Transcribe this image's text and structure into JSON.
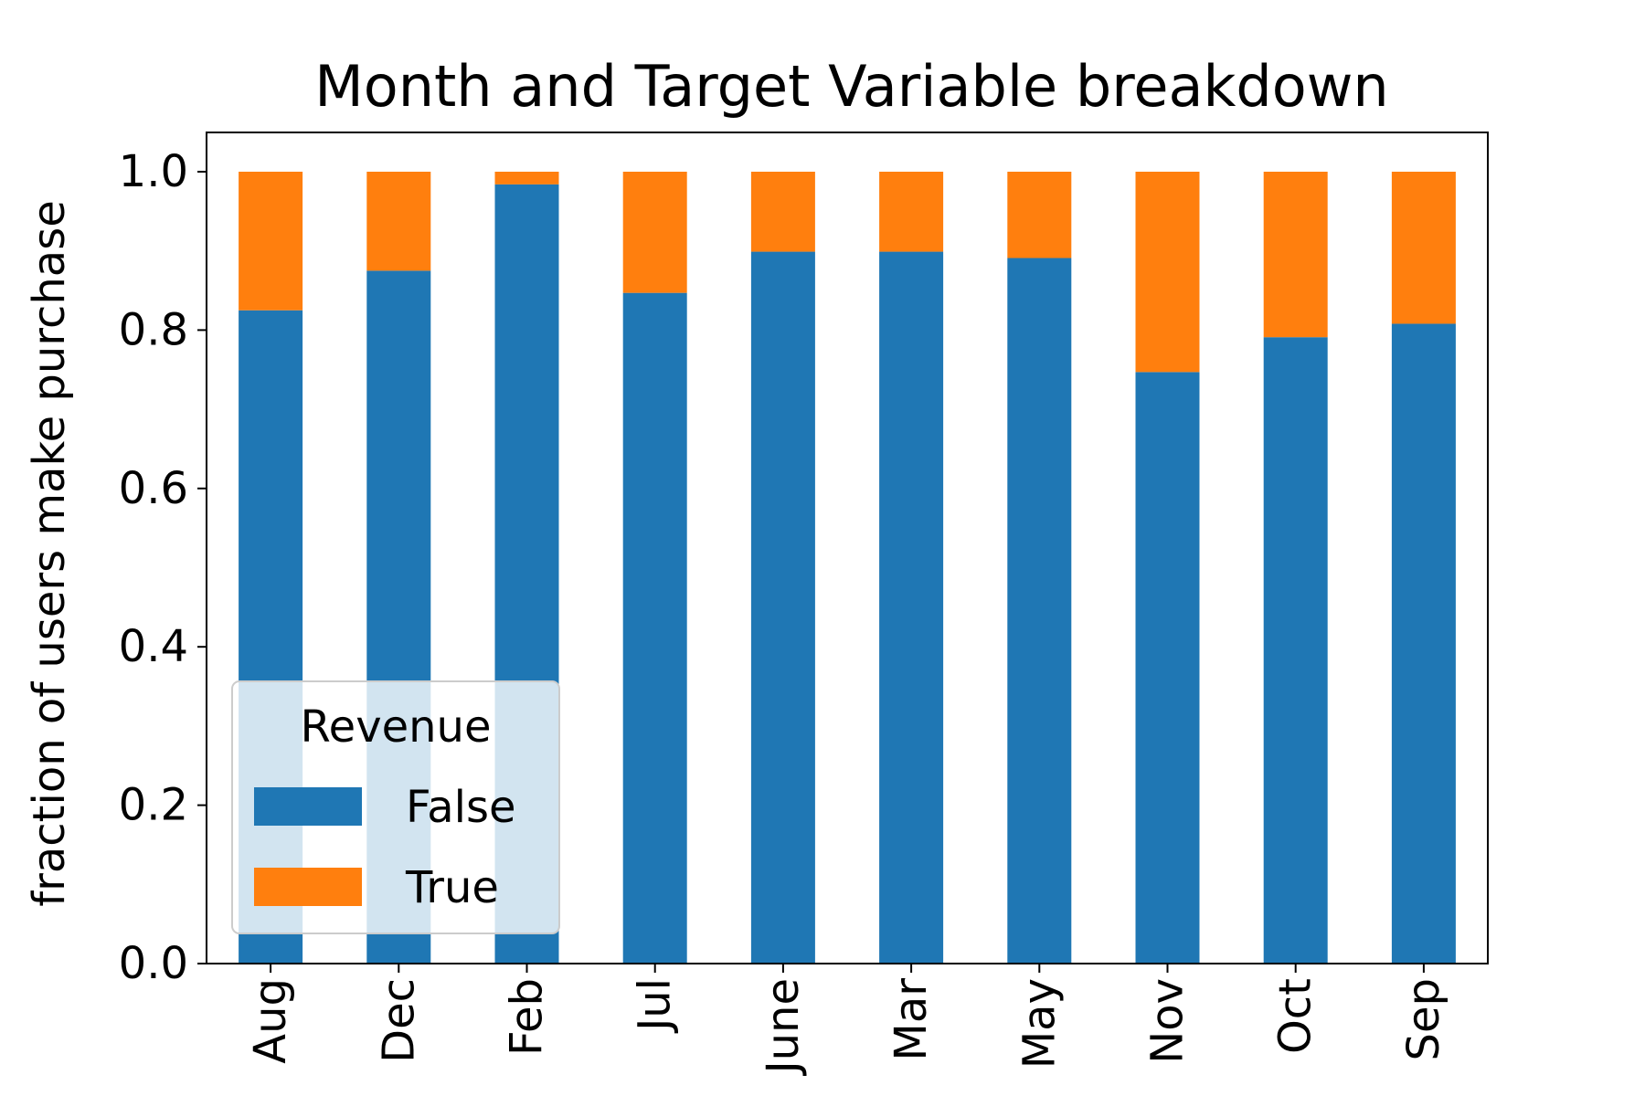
{
  "chart_data": {
    "type": "bar",
    "stacked": true,
    "title": "Month and Target Variable breakdown",
    "xlabel": "",
    "ylabel": "fraction of users make purchase",
    "ylim": [
      0,
      1.05
    ],
    "yticks": [
      "0.0",
      "0.2",
      "0.4",
      "0.6",
      "0.8",
      "1.0"
    ],
    "categories": [
      "Aug",
      "Dec",
      "Feb",
      "Jul",
      "June",
      "Mar",
      "May",
      "Nov",
      "Oct",
      "Sep"
    ],
    "legend": {
      "title": "Revenue",
      "position": "lower-left"
    },
    "grid": false,
    "series": [
      {
        "name": "False",
        "color": "#1f77b4",
        "values": [
          0.825,
          0.875,
          0.984,
          0.847,
          0.899,
          0.899,
          0.891,
          0.747,
          0.791,
          0.808
        ]
      },
      {
        "name": "True",
        "color": "#ff7f0e",
        "values": [
          0.175,
          0.125,
          0.016,
          0.153,
          0.101,
          0.101,
          0.109,
          0.253,
          0.209,
          0.192
        ]
      }
    ]
  }
}
